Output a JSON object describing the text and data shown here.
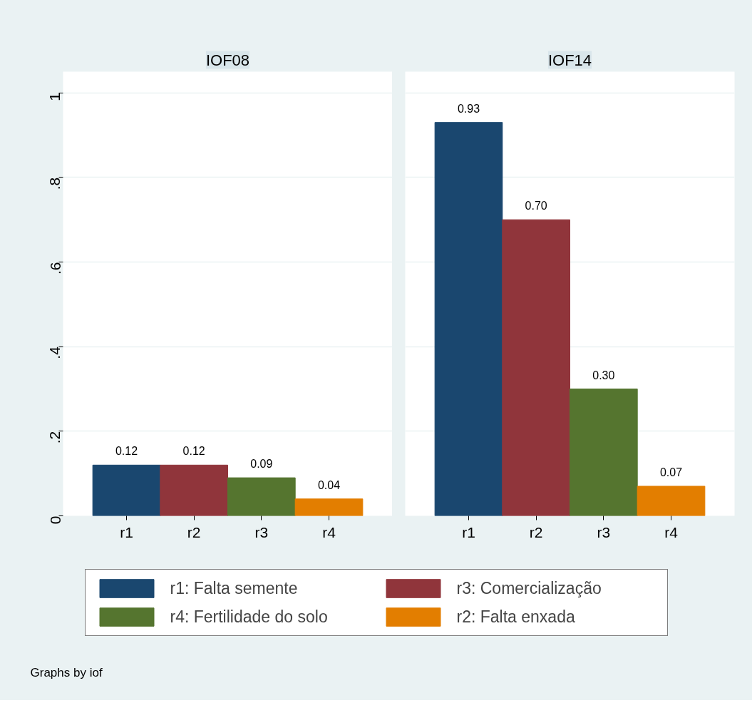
{
  "chart_data": [
    {
      "type": "bar",
      "title": "IOF08",
      "categories": [
        "r1",
        "r2",
        "r3",
        "r4"
      ],
      "series": [
        {
          "name": "r1: Falta semente",
          "color": "#1a476f",
          "values": [
            0.12,
            null,
            null,
            null
          ],
          "value_labels": [
            "0.12",
            null,
            null,
            null
          ]
        },
        {
          "name": "r3: Comercialização",
          "color": "#90353b",
          "values": [
            null,
            0.12,
            null,
            null
          ],
          "value_labels": [
            null,
            "0.12",
            null,
            null
          ]
        },
        {
          "name": "r4: Fertilidade do solo",
          "color": "#55752f",
          "values": [
            null,
            null,
            0.09,
            null
          ],
          "value_labels": [
            null,
            null,
            "0.09",
            null
          ]
        },
        {
          "name": "r2: Falta enxada",
          "color": "#e37e00",
          "values": [
            null,
            null,
            null,
            0.04
          ],
          "value_labels": [
            null,
            null,
            null,
            "0.04"
          ]
        }
      ],
      "ylim": [
        0,
        1.05
      ],
      "yticks": [
        0,
        {
          "value": 0.2,
          "label": ".2"
        },
        {
          "value": 0.4,
          "label": ".4"
        },
        {
          "value": 0.6,
          "label": ".6"
        },
        {
          "value": 0.8,
          "label": ".8"
        },
        1
      ],
      "grid": "y",
      "legend": "bottom",
      "annotations": [
        "Graphs by iof"
      ]
    },
    {
      "type": "bar",
      "title": "IOF14",
      "categories": [
        "r1",
        "r2",
        "r3",
        "r4"
      ],
      "series": [
        {
          "color": "#1a476f",
          "values": [
            0.93,
            null,
            null,
            null
          ],
          "value_labels": [
            "0.93",
            null,
            null,
            null
          ]
        },
        {
          "color": "#90353b",
          "values": [
            null,
            0.7,
            null,
            null
          ],
          "value_labels": [
            null,
            "0.70",
            null,
            null
          ]
        },
        {
          "color": "#55752f",
          "values": [
            null,
            null,
            0.3,
            null
          ],
          "value_labels": [
            null,
            null,
            "0.30",
            null
          ]
        },
        {
          "color": "#e37e00",
          "values": [
            null,
            null,
            null,
            0.07
          ],
          "value_labels": [
            null,
            null,
            null,
            "0.07"
          ]
        }
      ],
      "ylim": [
        0,
        1.05
      ],
      "yticks": [
        {
          "value": 0,
          "label": null
        },
        {
          "value": 0.2,
          "label": null
        },
        {
          "value": 0.4,
          "label": null
        },
        {
          "value": 0.6,
          "label": null
        },
        {
          "value": 0.8,
          "label": null
        },
        {
          "value": 1,
          "label": null
        }
      ],
      "grid": "y",
      "tick_labels": "x"
    }
  ]
}
